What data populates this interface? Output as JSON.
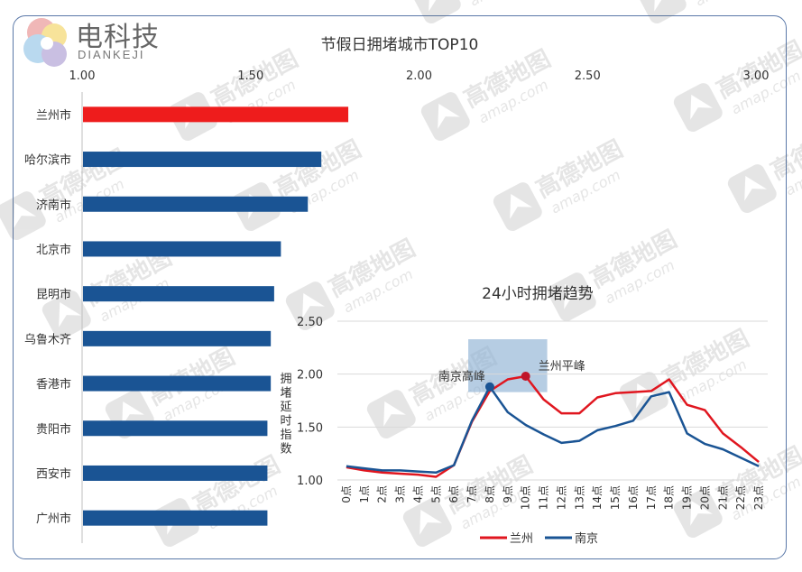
{
  "logo": {
    "name": "电科技",
    "sub": "DIANKEJI"
  },
  "watermark": {
    "brand": "高德地图",
    "url": "amap.com"
  },
  "chart_data": [
    {
      "type": "bar",
      "orientation": "horizontal",
      "title": "节假日拥堵城市TOP10",
      "ylabel": "拥堵延时指数",
      "xlim": [
        1.0,
        3.0
      ],
      "xticks": [
        "1.00",
        "1.50",
        "2.00",
        "2.50",
        "3.00"
      ],
      "categories": [
        "兰州市",
        "哈尔滨市",
        "济南市",
        "北京市",
        "昆明市",
        "乌鲁木齐",
        "香港市",
        "贵阳市",
        "西安市",
        "广州市"
      ],
      "values": [
        1.79,
        1.71,
        1.67,
        1.59,
        1.57,
        1.56,
        1.56,
        1.55,
        1.55,
        1.55
      ],
      "colors": [
        "#ee1c1c",
        "#1a5494",
        "#1a5494",
        "#1a5494",
        "#1a5494",
        "#1a5494",
        "#1a5494",
        "#1a5494",
        "#1a5494",
        "#1a5494"
      ]
    },
    {
      "type": "line",
      "title": "24小时拥堵趋势",
      "ylim": [
        1.0,
        2.5
      ],
      "yticks": [
        "1.00",
        "1.50",
        "2.00",
        "2.50"
      ],
      "x": [
        "0点",
        "1点",
        "2点",
        "3点",
        "4点",
        "5点",
        "6点",
        "7点",
        "8点",
        "9点",
        "10点",
        "11点",
        "12点",
        "13点",
        "14点",
        "15点",
        "16点",
        "17点",
        "18点",
        "19点",
        "20点",
        "21点",
        "22点",
        "23点"
      ],
      "series": [
        {
          "name": "兰州",
          "color": "#e0161f",
          "values": [
            1.12,
            1.09,
            1.07,
            1.06,
            1.05,
            1.03,
            1.14,
            1.55,
            1.84,
            1.95,
            1.98,
            1.76,
            1.63,
            1.63,
            1.78,
            1.82,
            1.83,
            1.84,
            1.95,
            1.71,
            1.66,
            1.44,
            1.31,
            1.17
          ]
        },
        {
          "name": "南京",
          "color": "#1a5494",
          "values": [
            1.13,
            1.11,
            1.09,
            1.09,
            1.08,
            1.07,
            1.14,
            1.56,
            1.88,
            1.64,
            1.52,
            1.43,
            1.35,
            1.37,
            1.47,
            1.51,
            1.56,
            1.79,
            1.83,
            1.44,
            1.34,
            1.29,
            1.21,
            1.13
          ]
        }
      ],
      "annotations": [
        {
          "text": "南京高峰",
          "series": "南京",
          "x": "8点",
          "y": 1.88
        },
        {
          "text": "兰州平峰",
          "series": "兰州",
          "x": "10点",
          "y": 1.98
        }
      ],
      "highlight_range": [
        "7点",
        "11点"
      ],
      "legend_position": "bottom"
    }
  ]
}
